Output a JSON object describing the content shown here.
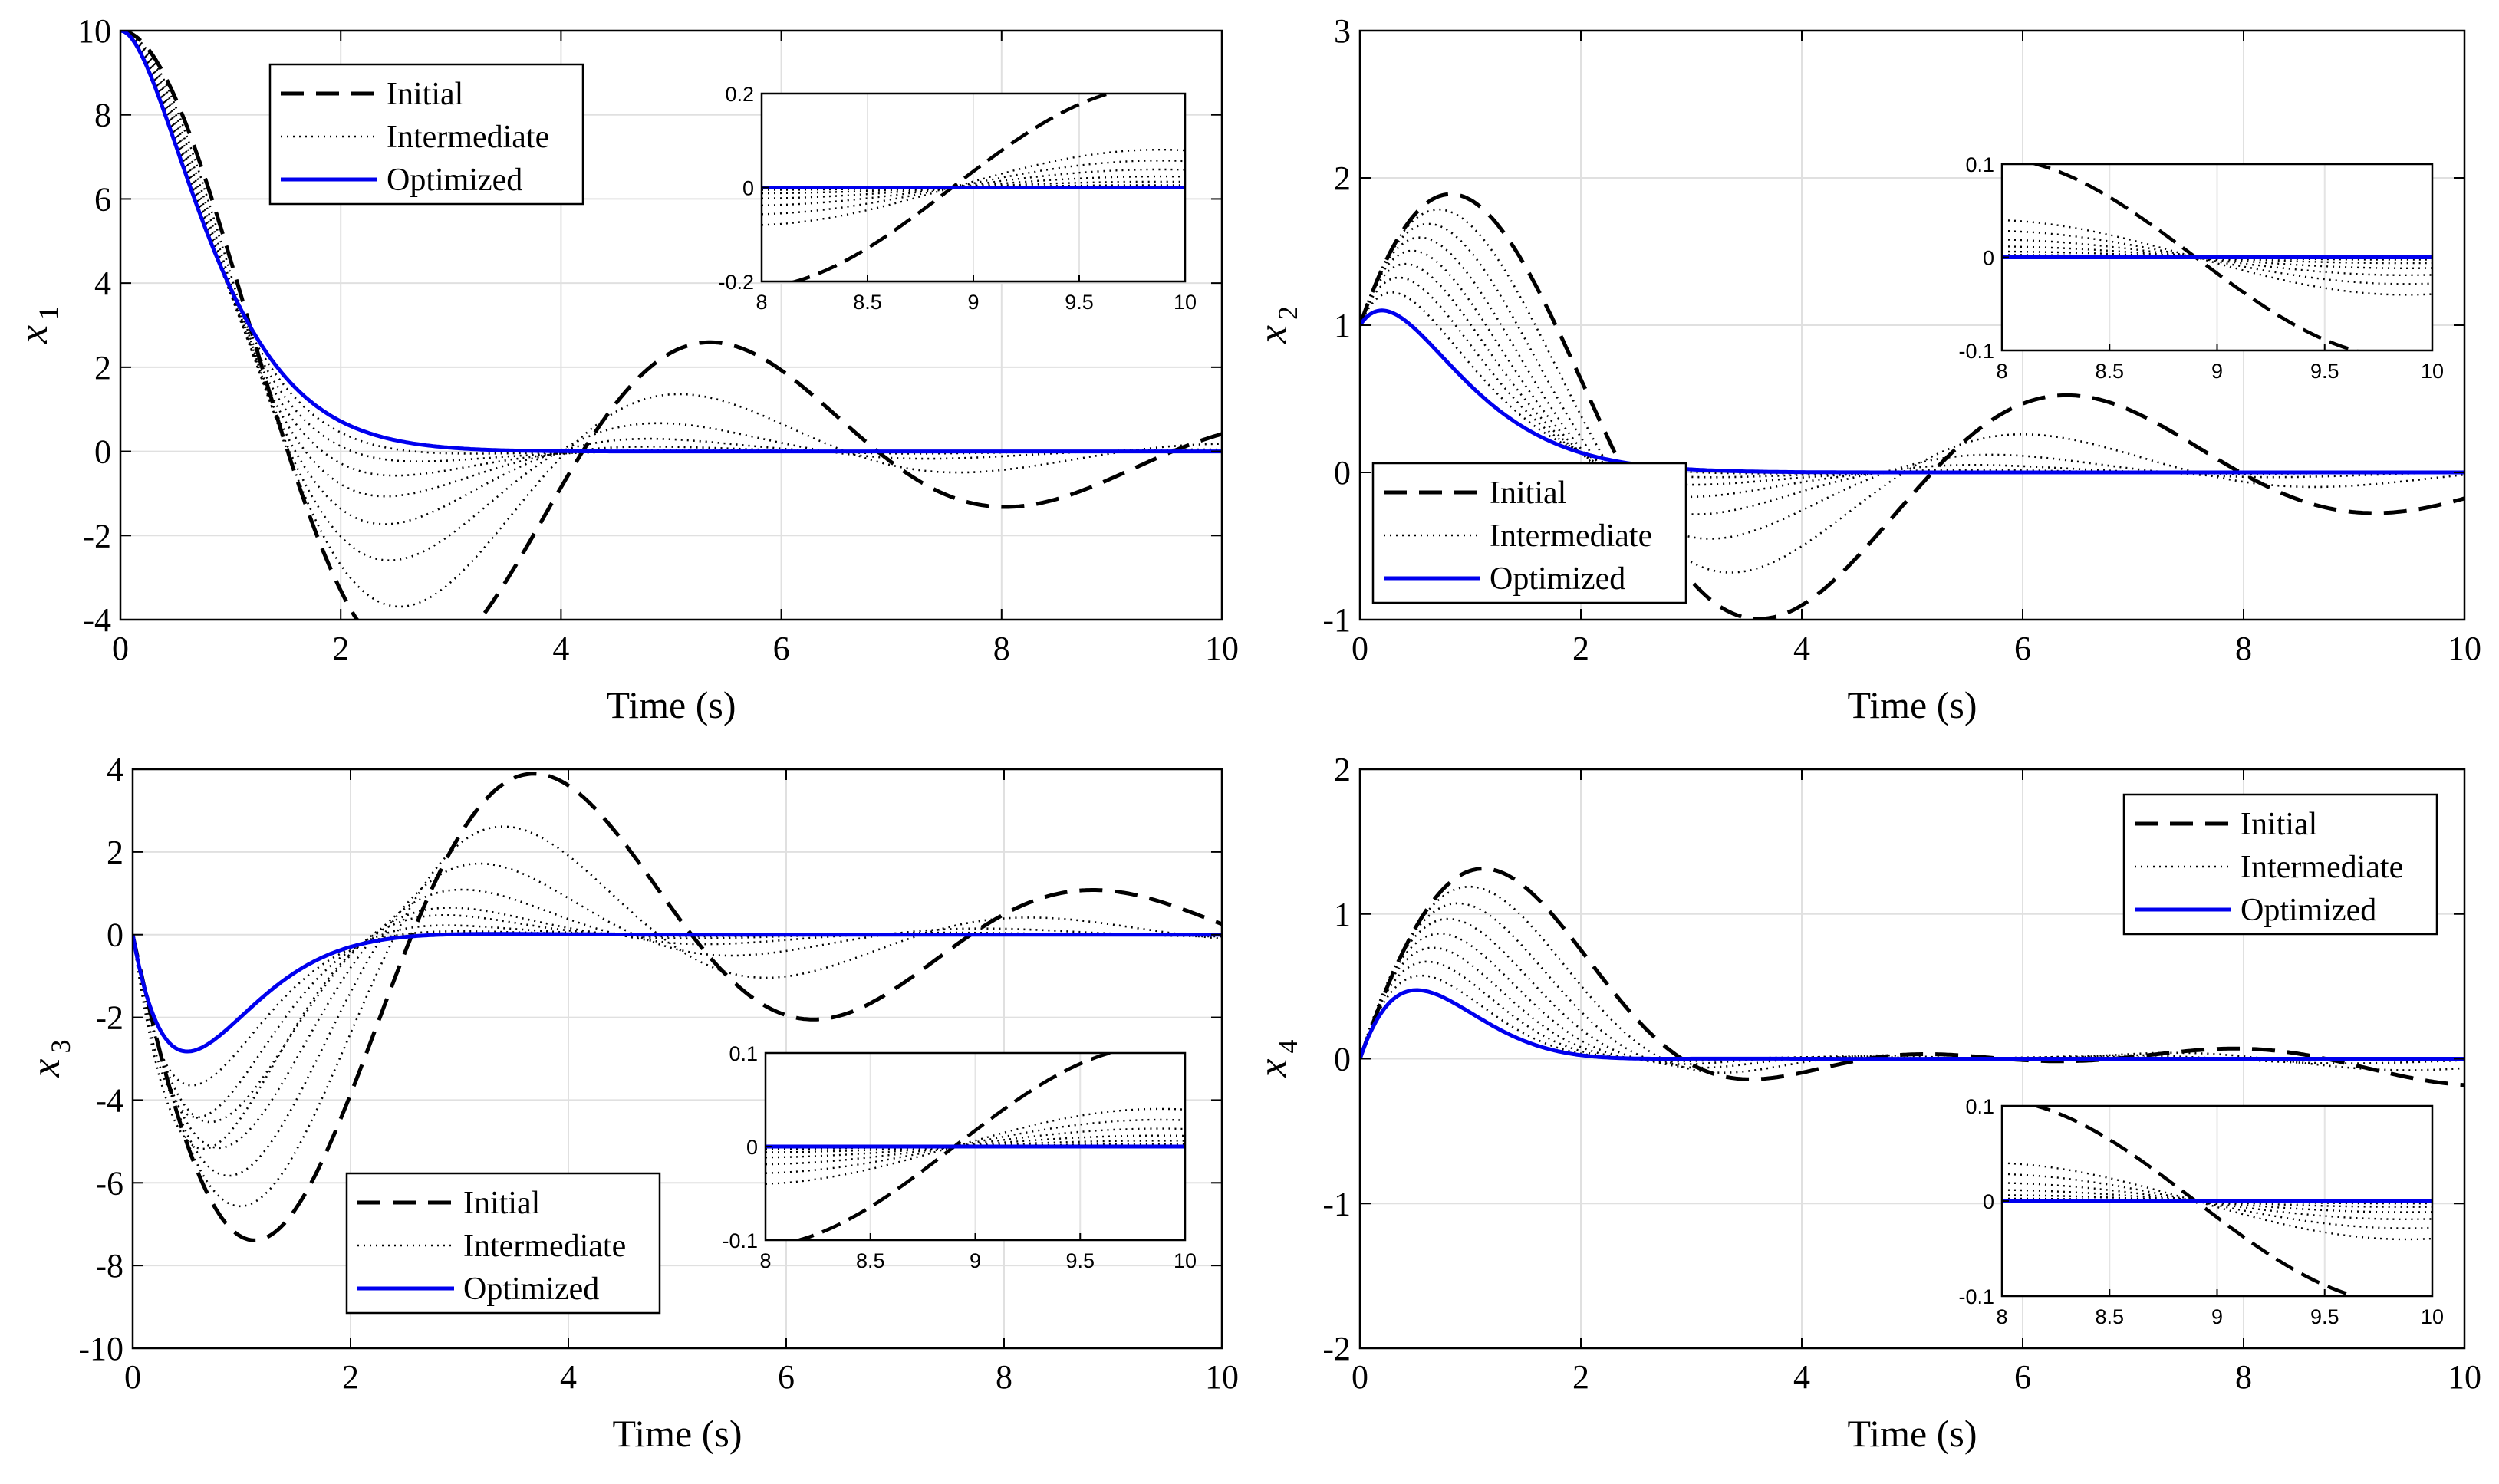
{
  "figure": {
    "description_free": true,
    "legend_labels": [
      "Initial",
      "Intermediate",
      "Optimized"
    ]
  },
  "chart_data": [
    {
      "id": "x1",
      "type": "line",
      "xlabel": "Time (s)",
      "ylabel": "x",
      "ylabel_sub": "1",
      "xlim": [
        0,
        10
      ],
      "ylim": [
        -4,
        10
      ],
      "xticks": [
        0,
        2,
        4,
        6,
        8,
        10
      ],
      "yticks": [
        -4,
        -2,
        0,
        2,
        4,
        6,
        8,
        10
      ],
      "grid": true,
      "legend": "top-left",
      "x0": 10,
      "intermediate_count": 7,
      "initial": {
        "w": 1.2,
        "z": 0.21
      },
      "optimized": {
        "w": 2.0,
        "z": 0.95
      },
      "series": [
        {
          "name": "Initial",
          "style": "dashed",
          "color": "#000000"
        },
        {
          "name": "Intermediate",
          "style": "dotted",
          "color": "#000000"
        },
        {
          "name": "Optimized",
          "style": "solid",
          "color": "#0000ee"
        }
      ],
      "inset": {
        "xlim": [
          8,
          10
        ],
        "ylim": [
          -0.2,
          0.2
        ],
        "xticks": [
          8,
          8.5,
          9,
          9.5,
          10
        ],
        "yticks": [
          -0.2,
          0,
          0.2
        ],
        "tick_labels_x": [
          "8",
          "8.5",
          "9",
          "9.5",
          "10"
        ],
        "tick_labels_y": [
          "-0.2",
          "0",
          "0.2"
        ]
      }
    },
    {
      "id": "x2",
      "type": "line",
      "xlabel": "Time (s)",
      "ylabel": "x",
      "ylabel_sub": "2",
      "xlim": [
        0,
        10
      ],
      "ylim": [
        -1,
        3
      ],
      "xticks": [
        0,
        2,
        4,
        6,
        8,
        10
      ],
      "yticks": [
        -1,
        0,
        1,
        2,
        3
      ],
      "grid": true,
      "legend": "bottom-left",
      "x0": 1,
      "intermediate_count": 7,
      "initial": {
        "w": 1.15,
        "z": 0.2
      },
      "optimized": {
        "w": 1.9,
        "z": 0.95
      },
      "series": [
        {
          "name": "Initial",
          "style": "dashed",
          "color": "#000000"
        },
        {
          "name": "Intermediate",
          "style": "dotted",
          "color": "#000000"
        },
        {
          "name": "Optimized",
          "style": "solid",
          "color": "#0000ee"
        }
      ],
      "inset": {
        "xlim": [
          8,
          10
        ],
        "ylim": [
          -0.1,
          0.1
        ],
        "xticks": [
          8,
          8.5,
          9,
          9.5,
          10
        ],
        "yticks": [
          -0.1,
          0,
          0.1
        ],
        "tick_labels_x": [
          "8",
          "8.5",
          "9",
          "9.5",
          "10"
        ],
        "tick_labels_y": [
          "-0.1",
          "0",
          "0.1"
        ]
      }
    },
    {
      "id": "x3",
      "type": "line",
      "xlabel": "Time (s)",
      "ylabel": "x",
      "ylabel_sub": "3",
      "xlim": [
        0,
        10
      ],
      "ylim": [
        -10,
        4
      ],
      "xticks": [
        0,
        2,
        4,
        6,
        8,
        10
      ],
      "yticks": [
        -10,
        -8,
        -6,
        -4,
        -2,
        0,
        2,
        4
      ],
      "grid": true,
      "legend": "bottom-center",
      "x0": 0,
      "intermediate_count": 7,
      "initial": {
        "w": 1.25,
        "z": 0.2
      },
      "optimized": {
        "w": 2.1,
        "z": 0.85
      },
      "series": [
        {
          "name": "Initial",
          "style": "dashed",
          "color": "#000000"
        },
        {
          "name": "Intermediate",
          "style": "dotted",
          "color": "#000000"
        },
        {
          "name": "Optimized",
          "style": "solid",
          "color": "#0000ee"
        }
      ],
      "inset": {
        "xlim": [
          8,
          10
        ],
        "ylim": [
          -0.1,
          0.1
        ],
        "xticks": [
          8,
          8.5,
          9,
          9.5,
          10
        ],
        "yticks": [
          -0.1,
          0,
          0.1
        ],
        "tick_labels_x": [
          "8",
          "8.5",
          "9",
          "9.5",
          "10"
        ],
        "tick_labels_y": [
          "-0.1",
          "0",
          "0.1"
        ]
      }
    },
    {
      "id": "x4",
      "type": "line",
      "xlabel": "Time (s)",
      "ylabel": "x",
      "ylabel_sub": "4",
      "xlim": [
        0,
        10
      ],
      "ylim": [
        -2,
        2
      ],
      "xticks": [
        0,
        2,
        4,
        6,
        8,
        10
      ],
      "yticks": [
        -2,
        -1,
        0,
        1,
        2
      ],
      "grid": true,
      "legend": "top-right",
      "x0": 0,
      "intermediate_count": 7,
      "initial": {
        "w": 1.1,
        "z": 0.2
      },
      "optimized": {
        "w": 1.85,
        "z": 0.8
      },
      "series": [
        {
          "name": "Initial",
          "style": "dashed",
          "color": "#000000"
        },
        {
          "name": "Intermediate",
          "style": "dotted",
          "color": "#000000"
        },
        {
          "name": "Optimized",
          "style": "solid",
          "color": "#0000ee"
        }
      ],
      "inset": {
        "xlim": [
          8,
          10
        ],
        "ylim": [
          -0.1,
          0.1
        ],
        "xticks": [
          8,
          8.5,
          9,
          9.5,
          10
        ],
        "yticks": [
          -0.1,
          0,
          0.1
        ],
        "tick_labels_x": [
          "8",
          "8.5",
          "9",
          "9.5",
          "10"
        ],
        "tick_labels_y": [
          "-0.1",
          "0",
          "0.1"
        ]
      }
    }
  ]
}
